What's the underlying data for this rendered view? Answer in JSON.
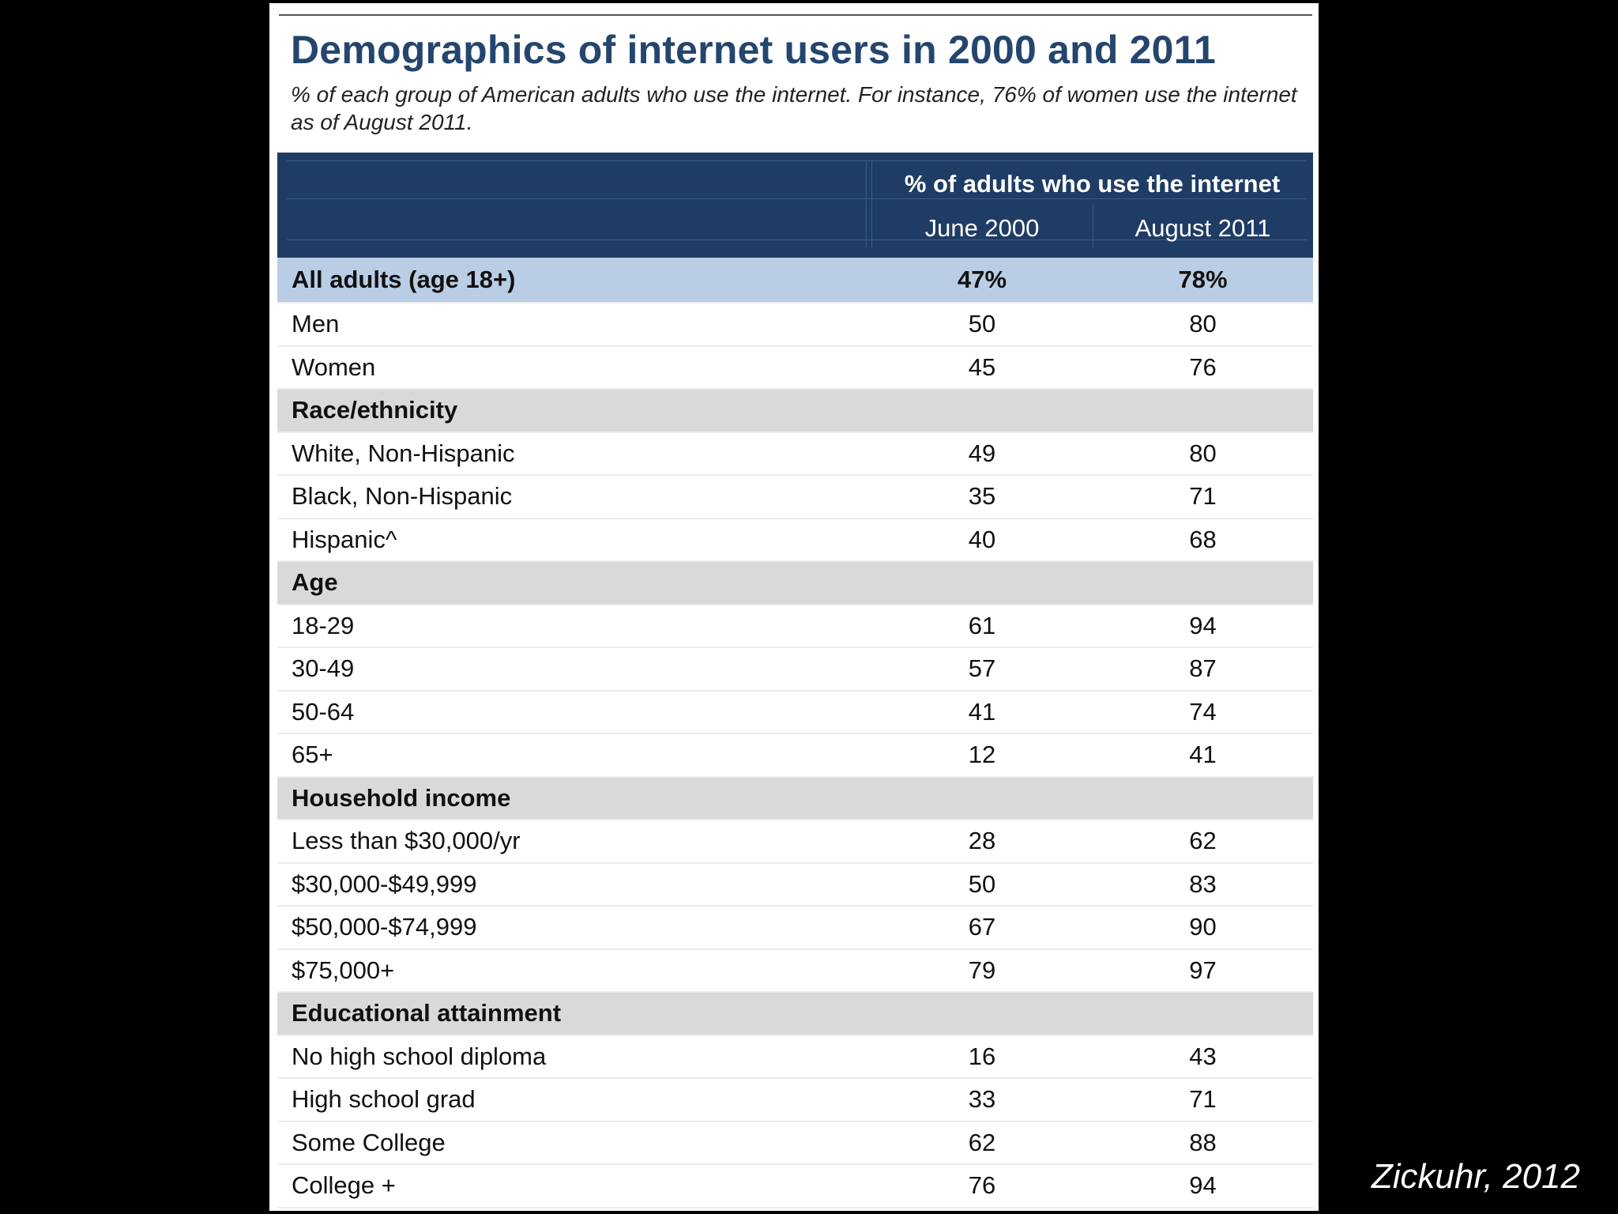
{
  "title": "Demographics of internet users in 2000 and 2011",
  "subtitle": "% of each group of American adults who use the internet. For instance, 76% of women use the internet as of August 2011.",
  "source": "Zickuhr, 2012",
  "colors": {
    "title": "#24466e",
    "header_bg": "#1f3c64",
    "total_row_bg": "#b9cde5",
    "section_row_bg": "#d9d9d9",
    "background": "#000000"
  },
  "chart_data": {
    "type": "table",
    "group_header": "% of adults who use the internet",
    "columns": [
      "June 2000",
      "August 2011"
    ],
    "rows": [
      {
        "label": "All adults (age 18+)",
        "kind": "total",
        "values": [
          "47%",
          "78%"
        ]
      },
      {
        "label": "Men",
        "kind": "data",
        "values": [
          "50",
          "80"
        ]
      },
      {
        "label": "Women",
        "kind": "data",
        "values": [
          "45",
          "76"
        ]
      },
      {
        "label": "Race/ethnicity",
        "kind": "section",
        "values": [
          "",
          ""
        ]
      },
      {
        "label": "White, Non-Hispanic",
        "kind": "data",
        "values": [
          "49",
          "80"
        ]
      },
      {
        "label": "Black, Non-Hispanic",
        "kind": "data",
        "values": [
          "35",
          "71"
        ]
      },
      {
        "label": "Hispanic^",
        "kind": "data",
        "values": [
          "40",
          "68"
        ]
      },
      {
        "label": "Age",
        "kind": "section",
        "values": [
          "",
          ""
        ]
      },
      {
        "label": "18-29",
        "kind": "data",
        "values": [
          "61",
          "94"
        ]
      },
      {
        "label": "30-49",
        "kind": "data",
        "values": [
          "57",
          "87"
        ]
      },
      {
        "label": "50-64",
        "kind": "data",
        "values": [
          "41",
          "74"
        ]
      },
      {
        "label": "65+",
        "kind": "data",
        "values": [
          "12",
          "41"
        ]
      },
      {
        "label": "Household income",
        "kind": "section",
        "values": [
          "",
          ""
        ]
      },
      {
        "label": "Less than $30,000/yr",
        "kind": "data",
        "values": [
          "28",
          "62"
        ]
      },
      {
        "label": "$30,000-$49,999",
        "kind": "data",
        "values": [
          "50",
          "83"
        ]
      },
      {
        "label": "$50,000-$74,999",
        "kind": "data",
        "values": [
          "67",
          "90"
        ]
      },
      {
        "label": "$75,000+",
        "kind": "data",
        "values": [
          "79",
          "97"
        ]
      },
      {
        "label": "Educational attainment",
        "kind": "section",
        "values": [
          "",
          ""
        ]
      },
      {
        "label": "No high school diploma",
        "kind": "data",
        "values": [
          "16",
          "43"
        ]
      },
      {
        "label": "High school grad",
        "kind": "data",
        "values": [
          "33",
          "71"
        ]
      },
      {
        "label": "Some College",
        "kind": "data",
        "values": [
          "62",
          "88"
        ]
      },
      {
        "label": "College +",
        "kind": "data",
        "values": [
          "76",
          "94"
        ]
      }
    ]
  }
}
